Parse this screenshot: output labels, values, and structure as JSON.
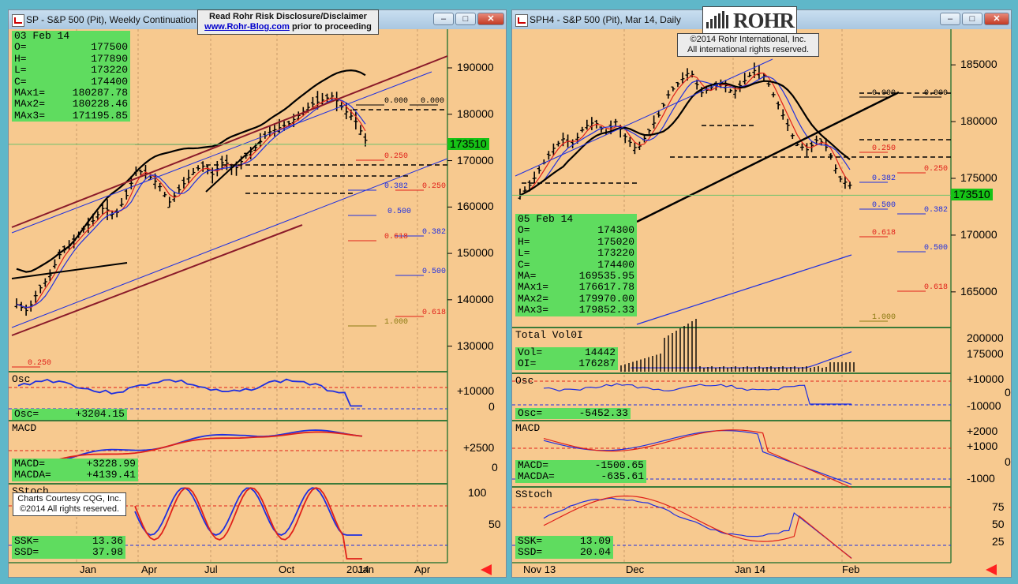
{
  "left_window": {
    "title": "SP - S&P 500 (Pit), Weekly Continuation",
    "disclaimer_line1": "Read Rohr Risk Disclosure/Disclaimer",
    "disclaimer_link": "www.Rohr-Blog.com",
    "disclaimer_after": " prior to proceeding",
    "price_tag": "173510",
    "info": [
      {
        "k": "03 Feb 14",
        "v": ""
      },
      {
        "k": "O=",
        "v": "177500"
      },
      {
        "k": "H=",
        "v": "177890"
      },
      {
        "k": "L=",
        "v": "173220"
      },
      {
        "k": "C=",
        "v": "174400"
      },
      {
        "k": "MAx1=",
        "v": "180287.78"
      },
      {
        "k": "MAx2=",
        "v": "180228.46"
      },
      {
        "k": "MAx3=",
        "v": "171195.85"
      }
    ],
    "osc_label": "Osc",
    "osc_value": [
      {
        "k": "Osc=",
        "v": "+3204.15"
      }
    ],
    "macd_label": "MACD",
    "macd_values": [
      {
        "k": "MACD=",
        "v": "+3228.99"
      },
      {
        "k": "MACDA=",
        "v": "+4139.41"
      }
    ],
    "sstoch_label": "SStoch",
    "stoch_values": [
      {
        "k": "SSK=",
        "v": "13.36"
      },
      {
        "k": "SSD=",
        "v": "37.98"
      }
    ],
    "courtesy_line1": "Charts Courtesy CQG, Inc.",
    "courtesy_line2": "©2014 All rights reserved.",
    "price_axis": [
      "190000",
      "180000",
      "170000",
      "160000",
      "150000",
      "140000",
      "130000"
    ],
    "osc_axis": [
      "+10000",
      "0"
    ],
    "macd_axis": [
      "+2500",
      "0"
    ],
    "stoch_axis": [
      "100",
      "50"
    ],
    "x_labels": [
      "Jan",
      "Apr",
      "Jul",
      "Oct",
      "2014",
      "Jan",
      "Apr"
    ],
    "fib_labels": [
      "0.000",
      "0.000",
      "0.250",
      "0.382",
      "0.250",
      "0.500",
      "0.382",
      "0.618",
      "0.500",
      "0.618",
      "1.000",
      "0.250"
    ]
  },
  "right_window": {
    "title": "SPH4 - S&P 500 (Pit), Mar 14, Daily",
    "logo_text": "ROHR",
    "copyright_line1": "©2014 Rohr International, Inc.",
    "copyright_line2": "All international rights reserved.",
    "price_tag": "173510",
    "info": [
      {
        "k": "05 Feb 14",
        "v": ""
      },
      {
        "k": "O=",
        "v": "174300"
      },
      {
        "k": "H=",
        "v": "175020"
      },
      {
        "k": "L=",
        "v": "173220"
      },
      {
        "k": "C=",
        "v": "174400"
      },
      {
        "k": "MA=",
        "v": "169535.95"
      },
      {
        "k": "MAx1=",
        "v": "176617.78"
      },
      {
        "k": "MAx2=",
        "v": "179970.00"
      },
      {
        "k": "MAx3=",
        "v": "179852.33"
      }
    ],
    "vol_label": "Total Vol0I",
    "vol_values": [
      {
        "k": "Vol=",
        "v": "14442"
      },
      {
        "k": "OI=",
        "v": "176287"
      }
    ],
    "osc_label": "Osc",
    "osc_value": [
      {
        "k": "Osc=",
        "v": "-5452.33"
      }
    ],
    "macd_label": "MACD",
    "macd_values": [
      {
        "k": "MACD=",
        "v": "-1500.65"
      },
      {
        "k": "MACDA=",
        "v": "-635.61"
      }
    ],
    "sstoch_label": "SStoch",
    "stoch_values": [
      {
        "k": "SSK=",
        "v": "13.09"
      },
      {
        "k": "SSD=",
        "v": "20.04"
      }
    ],
    "price_axis": [
      "185000",
      "180000",
      "175000",
      "170000",
      "165000"
    ],
    "vol_axis": [
      "200000",
      "175000"
    ],
    "osc_axis": [
      "+10000",
      "0",
      "-10000"
    ],
    "macd_axis": [
      "+2000",
      "+1000",
      "0",
      "-1000"
    ],
    "stoch_axis": [
      "75",
      "50",
      "25"
    ],
    "x_labels": [
      "Nov 13",
      "Dec",
      "Jan 14",
      "Feb"
    ],
    "fib_labels": [
      "0.000",
      "0.000",
      "0.250",
      "0.250",
      "0.382",
      "0.500",
      "0.382",
      "0.618",
      "0.500",
      "0.618",
      "1.000"
    ]
  },
  "colors": {
    "panel_bg": "#f7c98f",
    "info_green": "#5fdc5f",
    "price_tag": "#16c316",
    "blue": "#1f2fe0",
    "red": "#e0201a",
    "maroon": "#8a1a2a"
  },
  "chart_data": [
    {
      "type": "bar",
      "title": "SP - S&P 500 (Pit), Weekly Continuation",
      "ohlc_last": {
        "date": "03 Feb 14",
        "open": 177500,
        "high": 177890,
        "low": 173220,
        "close": 174400
      },
      "close_path": [
        139000,
        137500,
        142000,
        145000,
        150000,
        152000,
        155000,
        157000,
        160000,
        158000,
        162000,
        168000,
        167000,
        165000,
        161000,
        164000,
        167000,
        169000,
        167000,
        170000,
        168000,
        171000,
        173000,
        176000,
        177000,
        178000,
        180000,
        182000,
        183000,
        184000,
        181000,
        179000,
        174400
      ],
      "moving_averages": {
        "MAx1": 180287.78,
        "MAx2": 180228.46,
        "MAx3": 171195.85
      },
      "last_price": 173510,
      "ylim": [
        125000,
        198000
      ],
      "x_ticks": [
        "Jan",
        "Apr",
        "Jul",
        "Oct",
        "Jan",
        "Apr"
      ],
      "indicators": {
        "Osc": 3204.15,
        "MACD": 3228.99,
        "MACDA": 4139.41,
        "SSK": 13.36,
        "SSD": 37.98
      }
    },
    {
      "type": "bar",
      "title": "SPH4 - S&P 500 (Pit), Mar 14, Daily",
      "ohlc_last": {
        "date": "05 Feb 14",
        "open": 174300,
        "high": 175020,
        "low": 173220,
        "close": 174400
      },
      "close_path": [
        173500,
        174500,
        176000,
        177500,
        178500,
        178000,
        179500,
        180000,
        179000,
        180000,
        178500,
        177500,
        179000,
        180500,
        182500,
        183500,
        184500,
        182500,
        183000,
        183500,
        182500,
        183500,
        184500,
        184000,
        182000,
        180000,
        178000,
        177500,
        178500,
        177500,
        175000,
        174400
      ],
      "moving_averages": {
        "MA": 169535.95,
        "MAx1": 176617.78,
        "MAx2": 179970.0,
        "MAx3": 179852.33
      },
      "last_price": 173510,
      "ylim": [
        162000,
        188000
      ],
      "x_ticks": [
        "Nov 13",
        "Dec",
        "Jan 14",
        "Feb"
      ],
      "volume": {
        "Vol": 14442,
        "OI": 176287
      },
      "indicators": {
        "Osc": -5452.33,
        "MACD": -1500.65,
        "MACDA": -635.61,
        "SSK": 13.09,
        "SSD": 20.04
      }
    }
  ]
}
